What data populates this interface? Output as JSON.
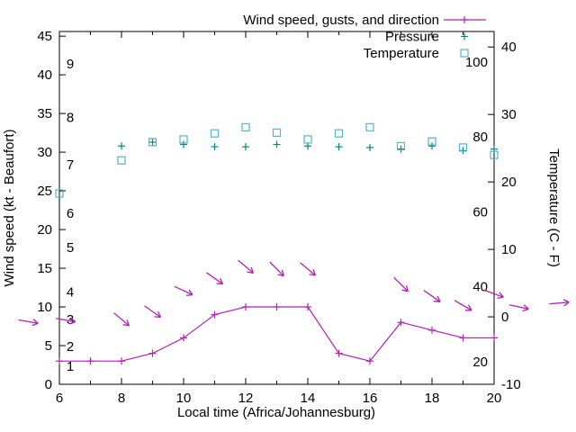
{
  "chart": {
    "legend": [
      {
        "key": "wind",
        "label": "Wind speed, gusts, and direction",
        "color": "#b520b5",
        "marker": "line-plus"
      },
      {
        "key": "pressure",
        "label": "Pressure",
        "color": "#00887a",
        "marker": "plus"
      },
      {
        "key": "temperature",
        "label": "Temperature",
        "color": "#52b4d2",
        "marker": "square"
      }
    ],
    "x_axis": {
      "label": "Local time (Africa/Johannesburg)",
      "min": 6,
      "max": 20,
      "major_ticks": [
        6,
        8,
        10,
        12,
        14,
        16,
        18,
        20
      ],
      "minor_ticks": [
        7,
        9,
        11,
        13,
        15,
        17,
        19
      ]
    },
    "y_left": {
      "label": "Wind speed (kt - Beaufort)",
      "min": 0,
      "max": 45.6,
      "ticks": [
        0,
        5,
        10,
        15,
        20,
        25,
        30,
        35,
        40,
        45
      ],
      "beaufort": [
        {
          "bf": "1",
          "kt": 2.3
        },
        {
          "bf": "2",
          "kt": 4.9
        },
        {
          "bf": "3",
          "kt": 8.4
        },
        {
          "bf": "4",
          "kt": 11.9
        },
        {
          "bf": "5",
          "kt": 17.7
        },
        {
          "bf": "6",
          "kt": 22.1
        },
        {
          "bf": "7",
          "kt": 28.4
        },
        {
          "bf": "8",
          "kt": 34.5
        },
        {
          "bf": "9",
          "kt": 41.4
        }
      ]
    },
    "y_right": {
      "label": "Temperature (C - F)",
      "min": -10,
      "max": 42.3,
      "ticks": [
        -10,
        0,
        10,
        20,
        30,
        40
      ],
      "fahrenheit": [
        20,
        40,
        60,
        80,
        100
      ]
    }
  },
  "chart_data": {
    "type": "line",
    "x_unit": "hour (local time)",
    "grid": false,
    "legend_position": "top-right-inside",
    "series": [
      {
        "name": "wind_speed",
        "unit": "kt",
        "axis": "left",
        "x": [
          6,
          7,
          8,
          9,
          10,
          11,
          12,
          13,
          14,
          15,
          16,
          17,
          18,
          19,
          20
        ],
        "y": [
          3,
          3,
          3,
          4,
          6,
          9,
          10,
          10,
          10,
          4,
          3,
          8,
          7,
          6,
          6
        ]
      },
      {
        "name": "wind_gust_direction",
        "unit": "kt, screen-angle degrees",
        "axis": "left",
        "points": [
          {
            "x": 5.0,
            "gust": 8.1,
            "dir": 10
          },
          {
            "x": 6.2,
            "gust": 8.3,
            "dir": 10
          },
          {
            "x": 8,
            "gust": 8.4,
            "dir": 40
          },
          {
            "x": 9,
            "gust": 9.4,
            "dir": 35
          },
          {
            "x": 10,
            "gust": 12.1,
            "dir": 25
          },
          {
            "x": 11,
            "gust": 13.7,
            "dir": 35
          },
          {
            "x": 12,
            "gust": 15.2,
            "dir": 40
          },
          {
            "x": 13,
            "gust": 14.9,
            "dir": 45
          },
          {
            "x": 14,
            "gust": 14.9,
            "dir": 40
          },
          {
            "x": 17,
            "gust": 12.9,
            "dir": 45
          },
          {
            "x": 18,
            "gust": 11.4,
            "dir": 35
          },
          {
            "x": 19,
            "gust": 10.2,
            "dir": 30
          },
          {
            "x": 20,
            "gust": 11.7,
            "dir": 20
          },
          {
            "x": 20.8,
            "gust": 10.0,
            "dir": 12
          },
          {
            "x": 22.1,
            "gust": 10.5,
            "dir": -5
          }
        ]
      },
      {
        "name": "pressure",
        "unit": "inHg (plotted on left-axis units)",
        "axis": "left",
        "x": [
          8,
          9,
          10,
          11,
          12,
          13,
          14,
          15,
          16,
          17,
          18,
          19,
          20
        ],
        "y": [
          30.8,
          31.3,
          31.0,
          30.7,
          30.7,
          31.0,
          30.8,
          30.7,
          30.6,
          30.4,
          30.8,
          30.2,
          30.4
        ]
      },
      {
        "name": "temperature",
        "unit": "C",
        "axis": "right",
        "x": [
          6,
          8,
          9,
          10,
          11,
          12,
          13,
          14,
          15,
          16,
          17,
          18,
          19,
          20
        ],
        "y": [
          18.3,
          23.2,
          25.9,
          26.3,
          27.2,
          28.1,
          27.3,
          26.3,
          27.2,
          28.1,
          25.3,
          26.0,
          25.1,
          24.0
        ]
      }
    ]
  }
}
